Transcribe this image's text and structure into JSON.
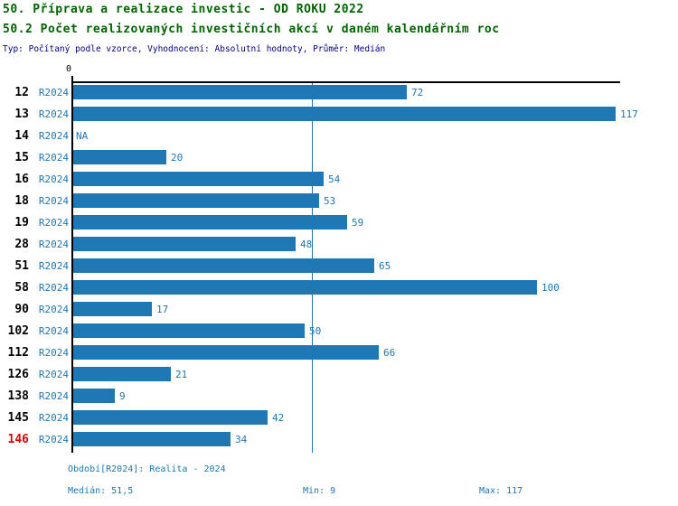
{
  "header": {
    "title_line1": "50. Příprava a realizace investic - OD ROKU 2022",
    "title_line2": "50.2 Počet realizovaných investičních akcí v daném kalendářním roc",
    "subtitle": "Typ: Počítaný podle vzorce, Vyhodnocení: Absolutní hodnoty, Průměr: Medián"
  },
  "chart_data": {
    "type": "bar",
    "orientation": "horizontal",
    "title": "50.2 Počet realizovaných investičních akcí v daném kalendářním roc",
    "categories": [
      "12",
      "13",
      "14",
      "15",
      "16",
      "18",
      "19",
      "28",
      "51",
      "58",
      "90",
      "102",
      "112",
      "126",
      "138",
      "145",
      "146"
    ],
    "series": [
      {
        "name": "R2024",
        "values": [
          72,
          117,
          null,
          20,
          54,
          53,
          59,
          48,
          65,
          100,
          17,
          50,
          66,
          21,
          9,
          42,
          34
        ]
      }
    ],
    "na_label": "NA",
    "x_zero_label": "0",
    "xlim": [
      0,
      118
    ],
    "min": 9,
    "max": 117,
    "median_value": 51.5,
    "median_line": true,
    "grid": false,
    "legend_position": "none",
    "highlighted_category": "146",
    "bar_color": "#1f77b4",
    "highlight_color": "#e00000"
  },
  "footer": {
    "period_info": "Období[R2024]: Realita - 2024",
    "median_label": "Medián: 51,5",
    "min_label": "Min: 9",
    "max_label": "Max: 117"
  },
  "colors": {
    "accent": "#1f77b4",
    "title": "#006400",
    "subtitle": "#000080",
    "highlight": "#e00000",
    "axis": "#000000"
  }
}
